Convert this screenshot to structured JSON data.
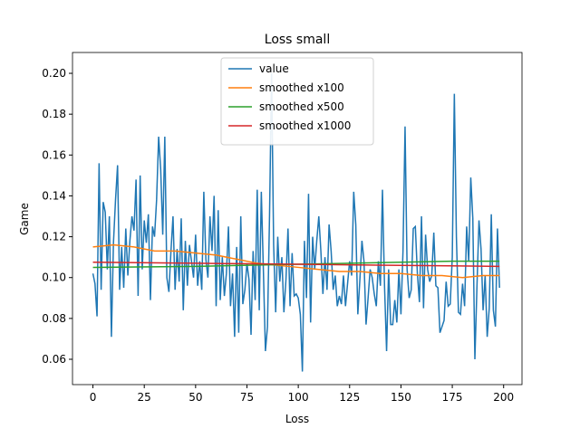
{
  "chart_data": {
    "type": "line",
    "title": "Loss small",
    "x_label": "Loss",
    "y_label": "Game",
    "xlim": [
      -9.95,
      208.95
    ],
    "ylim": [
      0.0476,
      0.2102
    ],
    "xticks": [
      0,
      25,
      50,
      75,
      100,
      125,
      150,
      175,
      200
    ],
    "yticks": [
      0.06,
      0.08,
      {
        "value": 0.1,
        "label": "0.10"
      },
      0.12,
      0.14,
      0.16,
      0.18,
      {
        "value": 0.2,
        "label": "0.20"
      }
    ],
    "legend": "upper center",
    "series": [
      {
        "name": "value",
        "color": "#1f77b4",
        "x": [
          0,
          1,
          2,
          3,
          4,
          5,
          6,
          7,
          8,
          9,
          10,
          11,
          12,
          13,
          14,
          15,
          16,
          17,
          18,
          19,
          20,
          21,
          22,
          23,
          24,
          25,
          26,
          27,
          28,
          29,
          30,
          31,
          32,
          33,
          34,
          35,
          36,
          37,
          38,
          39,
          40,
          41,
          42,
          43,
          44,
          45,
          46,
          47,
          48,
          49,
          50,
          51,
          52,
          53,
          54,
          55,
          56,
          57,
          58,
          59,
          60,
          61,
          62,
          63,
          64,
          65,
          66,
          67,
          68,
          69,
          70,
          71,
          72,
          73,
          74,
          75,
          76,
          77,
          78,
          79,
          80,
          81,
          82,
          83,
          84,
          85,
          86,
          87,
          88,
          89,
          90,
          91,
          92,
          93,
          94,
          95,
          96,
          97,
          98,
          99,
          100,
          101,
          102,
          103,
          104,
          105,
          106,
          107,
          108,
          109,
          110,
          111,
          112,
          113,
          114,
          115,
          116,
          117,
          118,
          119,
          120,
          121,
          122,
          123,
          124,
          125,
          126,
          127,
          128,
          129,
          130,
          131,
          132,
          133,
          134,
          135,
          136,
          137,
          138,
          139,
          140,
          141,
          142,
          143,
          144,
          145,
          146,
          147,
          148,
          149,
          150,
          151,
          152,
          153,
          154,
          155,
          156,
          157,
          158,
          159,
          160,
          161,
          162,
          163,
          164,
          165,
          166,
          167,
          168,
          169,
          170,
          171,
          172,
          173,
          174,
          175,
          176,
          177,
          178,
          179,
          180,
          181,
          182,
          183,
          184,
          185,
          186,
          187,
          188,
          189,
          190,
          191,
          192,
          193,
          194,
          195,
          196,
          197,
          198
        ],
        "values": [
          0.102,
          0.097,
          0.081,
          0.156,
          0.094,
          0.137,
          0.132,
          0.104,
          0.13,
          0.071,
          0.117,
          0.138,
          0.155,
          0.094,
          0.115,
          0.095,
          0.124,
          0.101,
          0.118,
          0.13,
          0.123,
          0.148,
          0.091,
          0.15,
          0.104,
          0.128,
          0.117,
          0.131,
          0.089,
          0.125,
          0.12,
          0.138,
          0.169,
          0.153,
          0.121,
          0.169,
          0.1,
          0.093,
          0.113,
          0.13,
          0.094,
          0.114,
          0.098,
          0.129,
          0.084,
          0.118,
          0.096,
          0.116,
          0.108,
          0.1,
          0.121,
          0.096,
          0.108,
          0.094,
          0.142,
          0.109,
          0.1,
          0.13,
          0.113,
          0.14,
          0.086,
          0.133,
          0.089,
          0.11,
          0.091,
          0.102,
          0.125,
          0.086,
          0.102,
          0.071,
          0.115,
          0.073,
          0.13,
          0.087,
          0.094,
          0.107,
          0.099,
          0.072,
          0.113,
          0.089,
          0.143,
          0.084,
          0.142,
          0.104,
          0.064,
          0.076,
          0.13,
          0.2,
          0.116,
          0.083,
          0.12,
          0.098,
          0.11,
          0.083,
          0.099,
          0.124,
          0.086,
          0.112,
          0.091,
          0.092,
          0.09,
          0.082,
          0.054,
          0.118,
          0.09,
          0.141,
          0.078,
          0.12,
          0.104,
          0.118,
          0.13,
          0.113,
          0.092,
          0.11,
          0.094,
          0.126,
          0.113,
          0.094,
          0.101,
          0.086,
          0.091,
          0.087,
          0.101,
          0.086,
          0.097,
          0.108,
          0.101,
          0.142,
          0.126,
          0.082,
          0.099,
          0.118,
          0.108,
          0.077,
          0.09,
          0.104,
          0.1,
          0.092,
          0.086,
          0.108,
          0.096,
          0.143,
          0.096,
          0.064,
          0.104,
          0.077,
          0.077,
          0.089,
          0.078,
          0.104,
          0.082,
          0.113,
          0.174,
          0.104,
          0.09,
          0.094,
          0.124,
          0.125,
          0.102,
          0.088,
          0.13,
          0.085,
          0.121,
          0.104,
          0.098,
          0.101,
          0.122,
          0.096,
          0.095,
          0.073,
          0.076,
          0.079,
          0.098,
          0.086,
          0.087,
          0.11,
          0.19,
          0.12,
          0.083,
          0.082,
          0.097,
          0.086,
          0.125,
          0.108,
          0.149,
          0.129,
          0.06,
          0.095,
          0.128,
          0.114,
          0.084,
          0.101,
          0.071,
          0.085,
          0.131,
          0.084,
          0.076,
          0.124,
          0.095
        ]
      },
      {
        "name": "smoothed x100",
        "color": "#ff7f0e",
        "x": [
          0,
          10,
          20,
          30,
          40,
          50,
          60,
          70,
          80,
          90,
          100,
          110,
          120,
          130,
          140,
          150,
          160,
          170,
          180,
          190,
          198
        ],
        "values": [
          0.115,
          0.116,
          0.115,
          0.113,
          0.113,
          0.112,
          0.111,
          0.109,
          0.107,
          0.106,
          0.105,
          0.104,
          0.103,
          0.103,
          0.102,
          0.102,
          0.101,
          0.101,
          0.1,
          0.101,
          0.101
        ]
      },
      {
        "name": "smoothed x500",
        "color": "#2ca02c",
        "x": [
          0,
          50,
          100,
          150,
          175,
          198
        ],
        "values": [
          0.105,
          0.1055,
          0.1065,
          0.1075,
          0.108,
          0.108
        ]
      },
      {
        "name": "smoothed x1000",
        "color": "#d62728",
        "x": [
          0,
          50,
          100,
          150,
          198
        ],
        "values": [
          0.1075,
          0.107,
          0.1065,
          0.106,
          0.1055
        ]
      }
    ]
  }
}
